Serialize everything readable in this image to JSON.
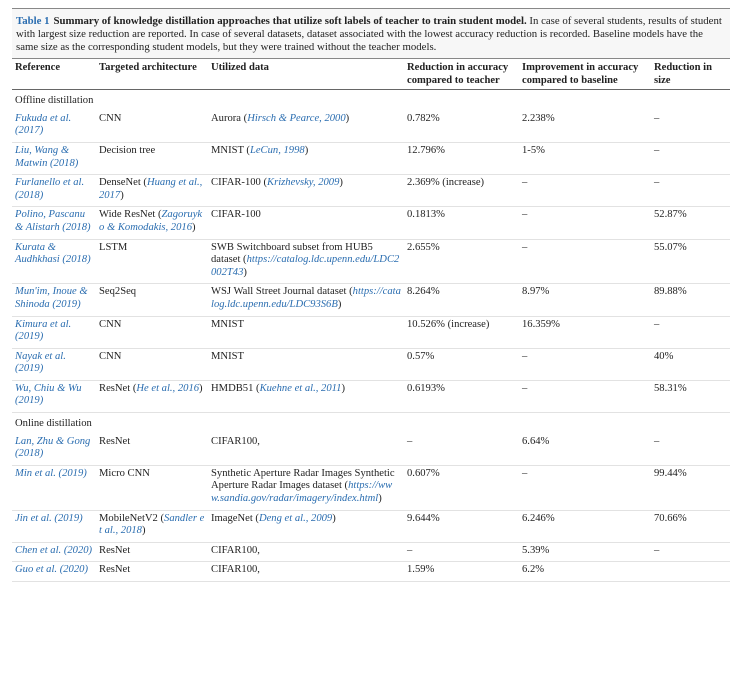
{
  "table": {
    "label": "Table 1",
    "title": "Summary of knowledge distillation approaches that utilize soft labels of teacher to train student model.",
    "caption": "In case of several students, results of student with largest size reduction are reported. In case of several datasets, dataset associated with the lowest accuracy reduction is recorded. Baseline models have the same size as the corresponding student models, but they were trained without the teacher models.",
    "columns": [
      "Reference",
      "Targeted architecture",
      "Utilized data",
      "Reduction in accuracy compared to teacher",
      "Improvement in accuracy compared to baseline",
      "Reduction in size"
    ],
    "sections": [
      {
        "name": "Offline distillation",
        "rows": [
          [
            "Fukuda et al. (2017)",
            [
              "CNN"
            ],
            [
              "Aurora (",
              "Hirsch & Pearce, 2000",
              ")"
            ],
            "0.782%",
            "2.238%",
            "–"
          ],
          [
            "Liu, Wang & Matwin (2018)",
            [
              "Decision tree"
            ],
            [
              "MNIST (",
              "LeCun, 1998",
              ")"
            ],
            "12.796%",
            "1-5%",
            "–"
          ],
          [
            "Furlanello et al. (2018)",
            [
              "DenseNet (",
              "Huang et al., 2017",
              ")"
            ],
            [
              "CIFAR-100 (",
              "Krizhevsky, 2009",
              ")"
            ],
            "2.369% (increase)",
            "–",
            "–"
          ],
          [
            "Polino, Pascanu & Alistarh (2018)",
            [
              "Wide ResNet (",
              "Zagoruyko & Komodakis, 2016",
              ")"
            ],
            [
              "CIFAR-100"
            ],
            "0.1813%",
            "–",
            "52.87%"
          ],
          [
            "Kurata & Audhkhasi (2018)",
            [
              "LSTM"
            ],
            [
              "SWB Switchboard subset from HUB5 dataset (",
              "https://catalog.ldc.upenn.edu/LDC2002T43",
              ")"
            ],
            "2.655%",
            "–",
            "55.07%"
          ],
          [
            "Mun'im, Inoue & Shinoda (2019)",
            [
              "Seq2Seq"
            ],
            [
              "WSJ Wall Street Journal dataset (",
              "https://catalog.ldc.upenn.edu/LDC93S6B",
              ")"
            ],
            "8.264%",
            "8.97%",
            "89.88%"
          ],
          [
            "Kimura et al. (2019)",
            [
              "CNN"
            ],
            [
              "MNIST"
            ],
            "10.526% (increase)",
            "16.359%",
            "–"
          ],
          [
            "Nayak et al. (2019)",
            [
              "CNN"
            ],
            [
              "MNIST"
            ],
            "0.57%",
            "–",
            "40%"
          ],
          [
            "Wu, Chiu & Wu (2019)",
            [
              "ResNet (",
              "He et al., 2016",
              ")"
            ],
            [
              "HMDB51 (",
              "Kuehne et al., 2011",
              ")"
            ],
            "0.6193%",
            "–",
            "58.31%"
          ]
        ]
      },
      {
        "name": "Online distillation",
        "rows": [
          [
            "Lan, Zhu & Gong (2018)",
            [
              "ResNet"
            ],
            [
              "CIFAR100,"
            ],
            "–",
            "6.64%",
            "–"
          ],
          [
            "Min et al. (2019)",
            [
              "Micro CNN"
            ],
            [
              "Synthetic Aperture Radar Images Synthetic Aperture Radar Images dataset (",
              "https://www.sandia.gov/radar/imagery/index.html",
              ")"
            ],
            "0.607%",
            "–",
            "99.44%"
          ],
          [
            "Jin et al. (2019)",
            [
              "MobileNetV2 (",
              "Sandler et al., 2018",
              ")"
            ],
            [
              "ImageNet (",
              "Deng et al., 2009",
              ")"
            ],
            "9.644%",
            "6.246%",
            "70.66%"
          ],
          [
            "Chen et al. (2020)",
            [
              "ResNet"
            ],
            [
              "CIFAR100,"
            ],
            "–",
            "5.39%",
            "–"
          ],
          [
            "Guo et al. (2020)",
            [
              "ResNet"
            ],
            [
              "CIFAR100,"
            ],
            "1.59%",
            "6.2%",
            null
          ]
        ]
      }
    ]
  }
}
